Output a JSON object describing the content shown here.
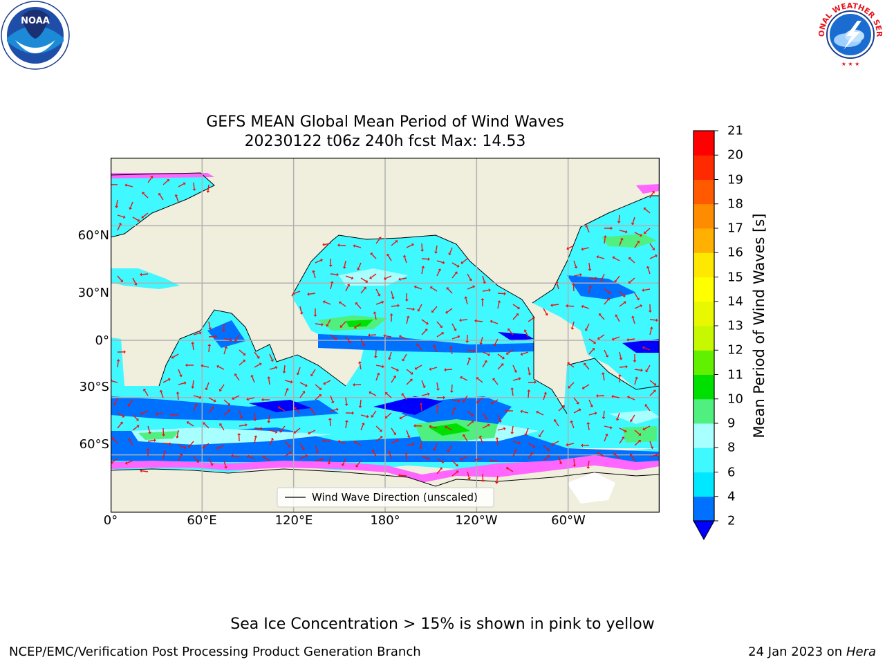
{
  "header": {
    "left_logo": {
      "name": "noaa-logo",
      "text": "NOAA"
    },
    "right_logo": {
      "name": "national-weather-service-logo",
      "text": "NATIONAL WEATHER SERVICE"
    }
  },
  "map": {
    "title_line1": "GEFS MEAN Global Mean Period of Wind Waves",
    "title_line2": "20230122 t06z 240h fcst   Max: 14.53",
    "lat_labels": [
      {
        "text": "60°N",
        "lat": 60
      },
      {
        "text": "30°N",
        "lat": 30
      },
      {
        "text": "0°",
        "lat": 0
      },
      {
        "text": "30°S",
        "lat": -30
      },
      {
        "text": "60°S",
        "lat": -60
      }
    ],
    "lon_labels": [
      {
        "text": "0°",
        "lon": 0
      },
      {
        "text": "60°E",
        "lon": 60
      },
      {
        "text": "120°E",
        "lon": 120
      },
      {
        "text": "180°",
        "lon": 180
      },
      {
        "text": "120°W",
        "lon": 240
      },
      {
        "text": "60°W",
        "lon": 300
      }
    ],
    "lat_range": [
      -90,
      90
    ],
    "lon_range": [
      0,
      360
    ],
    "legend_label": "Wind Wave Direction (unscaled)",
    "legend_placement": "lower-center",
    "colors": {
      "land": "#f0eedc",
      "arrows": "#ee1111",
      "grid": "#b0b0b0"
    }
  },
  "colorbar": {
    "label": "Mean Period of Wind Waves [s]",
    "ticks": [
      "2",
      "4",
      "6",
      "8",
      "9",
      "10",
      "11",
      "12",
      "13",
      "14",
      "15",
      "16",
      "17",
      "18",
      "19",
      "20",
      "21"
    ],
    "colors": [
      "#0070ff",
      "#00e8ff",
      "#40f8ff",
      "#a8ffff",
      "#50f080",
      "#00e000",
      "#60f000",
      "#c8f800",
      "#e8f800",
      "#ffff00",
      "#ffe800",
      "#ffb000",
      "#ff8c00",
      "#ff5a00",
      "#ff2a00",
      "#ff0000"
    ],
    "extend_color": "#0000ff"
  },
  "footer": {
    "sea_ice_note": "Sea Ice Concentration > 15% is shown in pink to yellow",
    "credit": "NCEP/EMC/Verification Post Processing Product Generation Branch",
    "date": "24 Jan 2023",
    "date_on": "on",
    "machine": "Hera"
  }
}
